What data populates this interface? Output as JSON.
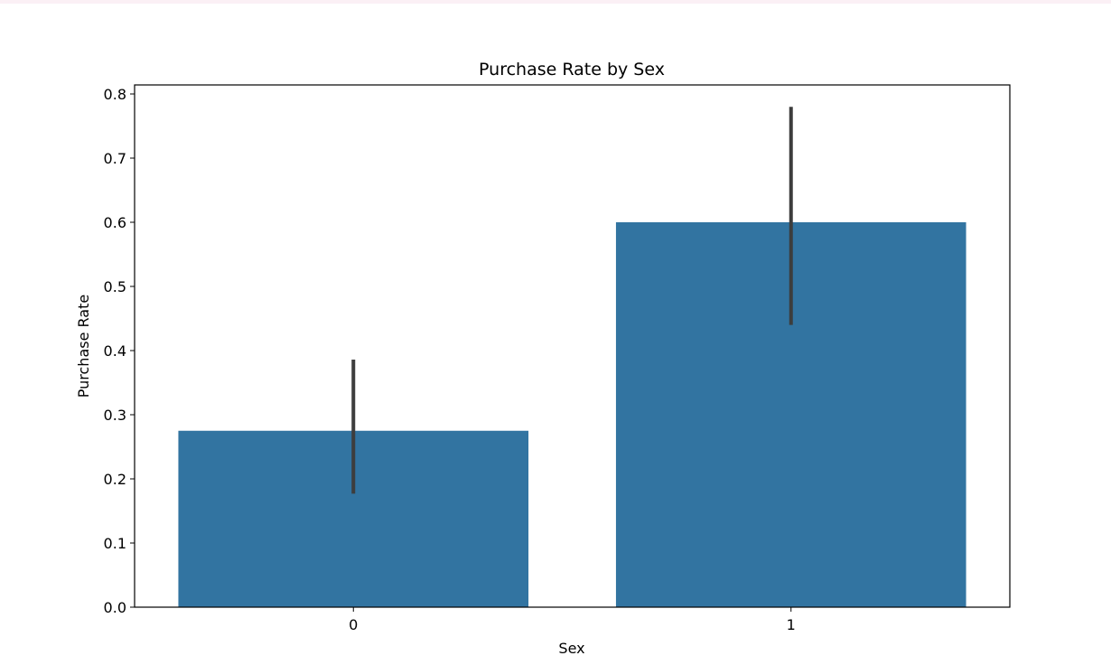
{
  "chart_data": {
    "type": "bar",
    "title": "Purchase Rate by Sex",
    "xlabel": "Sex",
    "ylabel": "Purchase Rate",
    "categories": [
      "0",
      "1"
    ],
    "values": [
      0.275,
      0.6
    ],
    "error_bars": [
      {
        "low": 0.177,
        "high": 0.386
      },
      {
        "low": 0.44,
        "high": 0.78
      }
    ],
    "ylim": [
      0,
      0.8
    ],
    "yticks": [
      0.0,
      0.1,
      0.2,
      0.3,
      0.4,
      0.5,
      0.6,
      0.7,
      0.8
    ],
    "ytick_labels": [
      "0.0",
      "0.1",
      "0.2",
      "0.3",
      "0.4",
      "0.5",
      "0.6",
      "0.7",
      "0.8"
    ],
    "grid": false,
    "legend": false,
    "colors": {
      "bar": "#3274a1",
      "error_bar": "#3d3d3d",
      "axis": "#000000",
      "top_strip": "#fbf0f5"
    }
  }
}
